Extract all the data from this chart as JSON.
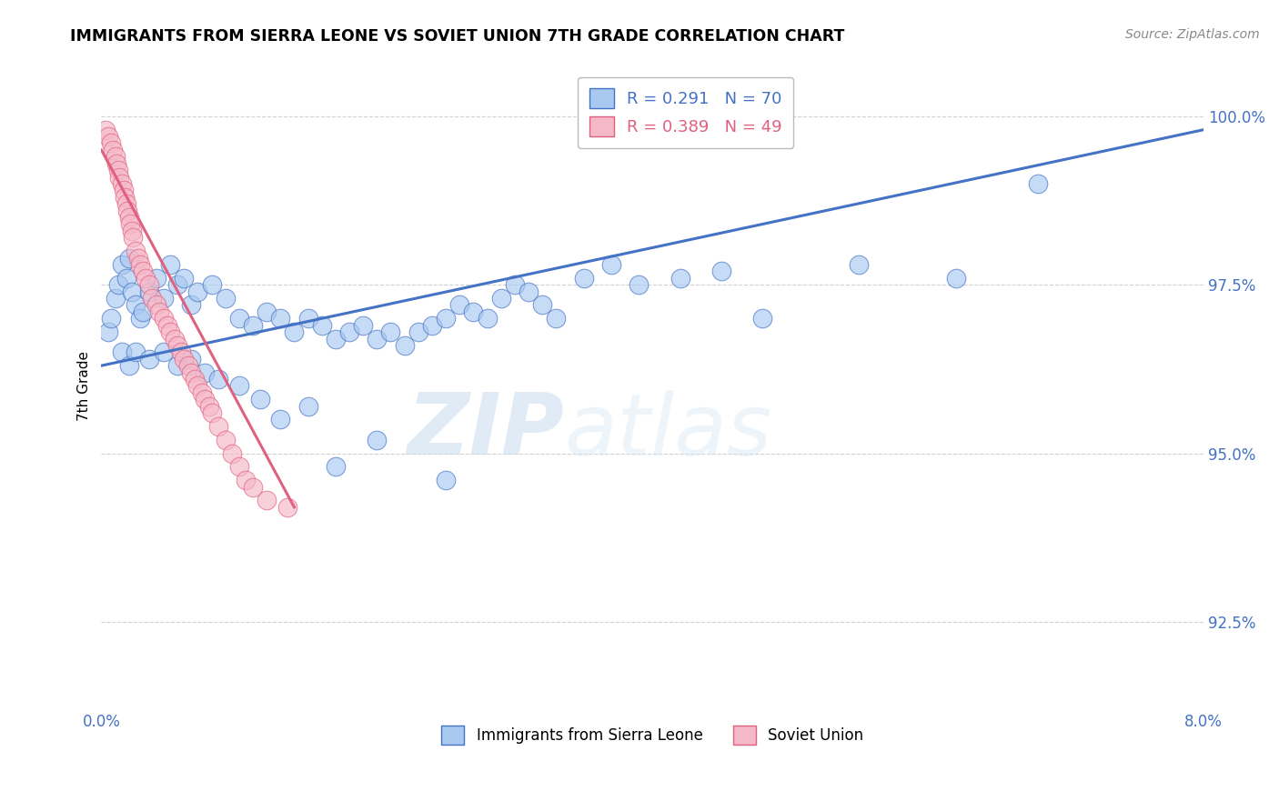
{
  "title": "IMMIGRANTS FROM SIERRA LEONE VS SOVIET UNION 7TH GRADE CORRELATION CHART",
  "source": "Source: ZipAtlas.com",
  "ylabel": "7th Grade",
  "yticks": [
    92.5,
    95.0,
    97.5,
    100.0
  ],
  "ytick_labels": [
    "92.5%",
    "95.0%",
    "97.5%",
    "100.0%"
  ],
  "xmin": 0.0,
  "xmax": 8.0,
  "ymin": 91.2,
  "ymax": 100.8,
  "legend_r1": "R = 0.291",
  "legend_n1": "N = 70",
  "legend_r2": "R = 0.389",
  "legend_n2": "N = 49",
  "label1": "Immigrants from Sierra Leone",
  "label2": "Soviet Union",
  "color1": "#A8C8F0",
  "color2": "#F5B8C8",
  "line_color1": "#4472C4",
  "line_color2": "#E06080",
  "watermark": "ZIPatlas",
  "blue_scatter_x": [
    0.05,
    0.07,
    0.1,
    0.12,
    0.15,
    0.18,
    0.2,
    0.22,
    0.25,
    0.28,
    0.3,
    0.35,
    0.4,
    0.45,
    0.5,
    0.55,
    0.6,
    0.65,
    0.7,
    0.8,
    0.9,
    1.0,
    1.1,
    1.2,
    1.3,
    1.4,
    1.5,
    1.6,
    1.7,
    1.8,
    1.9,
    2.0,
    2.1,
    2.2,
    2.3,
    2.4,
    2.5,
    2.6,
    2.7,
    2.8,
    2.9,
    3.0,
    3.1,
    3.2,
    3.3,
    3.5,
    3.7,
    3.9,
    4.2,
    4.5,
    4.8,
    5.5,
    6.2,
    6.8,
    0.15,
    0.2,
    0.25,
    0.35,
    0.45,
    0.55,
    0.65,
    0.75,
    0.85,
    1.0,
    1.15,
    1.3,
    1.5,
    1.7,
    2.0,
    2.5
  ],
  "blue_scatter_y": [
    96.8,
    97.0,
    97.3,
    97.5,
    97.8,
    97.6,
    97.9,
    97.4,
    97.2,
    97.0,
    97.1,
    97.4,
    97.6,
    97.3,
    97.8,
    97.5,
    97.6,
    97.2,
    97.4,
    97.5,
    97.3,
    97.0,
    96.9,
    97.1,
    97.0,
    96.8,
    97.0,
    96.9,
    96.7,
    96.8,
    96.9,
    96.7,
    96.8,
    96.6,
    96.8,
    96.9,
    97.0,
    97.2,
    97.1,
    97.0,
    97.3,
    97.5,
    97.4,
    97.2,
    97.0,
    97.6,
    97.8,
    97.5,
    97.6,
    97.7,
    97.0,
    97.8,
    97.6,
    99.0,
    96.5,
    96.3,
    96.5,
    96.4,
    96.5,
    96.3,
    96.4,
    96.2,
    96.1,
    96.0,
    95.8,
    95.5,
    95.7,
    94.8,
    95.2,
    94.6
  ],
  "pink_scatter_x": [
    0.03,
    0.05,
    0.07,
    0.08,
    0.1,
    0.11,
    0.12,
    0.13,
    0.15,
    0.16,
    0.17,
    0.18,
    0.19,
    0.2,
    0.21,
    0.22,
    0.23,
    0.25,
    0.27,
    0.28,
    0.3,
    0.32,
    0.35,
    0.37,
    0.4,
    0.42,
    0.45,
    0.48,
    0.5,
    0.53,
    0.55,
    0.58,
    0.6,
    0.63,
    0.65,
    0.68,
    0.7,
    0.73,
    0.75,
    0.78,
    0.8,
    0.85,
    0.9,
    0.95,
    1.0,
    1.05,
    1.1,
    1.2,
    1.35
  ],
  "pink_scatter_y": [
    99.8,
    99.7,
    99.6,
    99.5,
    99.4,
    99.3,
    99.2,
    99.1,
    99.0,
    98.9,
    98.8,
    98.7,
    98.6,
    98.5,
    98.4,
    98.3,
    98.2,
    98.0,
    97.9,
    97.8,
    97.7,
    97.6,
    97.5,
    97.3,
    97.2,
    97.1,
    97.0,
    96.9,
    96.8,
    96.7,
    96.6,
    96.5,
    96.4,
    96.3,
    96.2,
    96.1,
    96.0,
    95.9,
    95.8,
    95.7,
    95.6,
    95.4,
    95.2,
    95.0,
    94.8,
    94.6,
    94.5,
    94.3,
    94.2
  ],
  "blue_line_x": [
    0.0,
    8.0
  ],
  "blue_line_y": [
    96.3,
    99.8
  ],
  "pink_line_x": [
    0.0,
    1.4
  ],
  "pink_line_y": [
    99.5,
    94.2
  ]
}
